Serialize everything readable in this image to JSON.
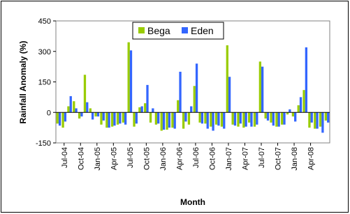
{
  "chart_data": {
    "type": "bar",
    "x_label": "Month",
    "y_label": "Rainfall Anomaly (%)",
    "categories": [
      null,
      "Jul-04",
      null,
      null,
      "Oct-04",
      null,
      null,
      "Jan-05",
      null,
      null,
      "Apr-05",
      null,
      null,
      "Jul-05",
      null,
      null,
      "Oct-05",
      null,
      null,
      "Jan-06",
      null,
      null,
      "Apr-06",
      null,
      null,
      "Jul-06",
      null,
      null,
      "Oct-06",
      null,
      null,
      "Jan-07",
      null,
      null,
      "Apr-07",
      null,
      null,
      "Jul-07",
      null,
      null,
      "Oct-07",
      null,
      null,
      "Jan-08",
      null,
      null,
      "Apr-08",
      null,
      null,
      null
    ],
    "series": [
      {
        "name": "Bega",
        "color": "#99cc00",
        "values": [
          -55,
          -75,
          30,
          55,
          -30,
          185,
          20,
          -20,
          -60,
          -75,
          -70,
          -60,
          -50,
          345,
          -70,
          25,
          45,
          -50,
          -60,
          -90,
          -85,
          -75,
          60,
          -80,
          -60,
          130,
          -50,
          -55,
          -70,
          -60,
          -70,
          330,
          -60,
          -70,
          -75,
          -50,
          -70,
          250,
          -30,
          -50,
          -70,
          -60,
          -10,
          -20,
          35,
          110,
          -75,
          -80,
          -70,
          -40
        ]
      },
      {
        "name": "Eden",
        "color": "#3366ff",
        "values": [
          -65,
          -45,
          80,
          20,
          -20,
          50,
          -35,
          -20,
          -40,
          -75,
          -65,
          -55,
          -60,
          305,
          -55,
          30,
          135,
          20,
          -55,
          -85,
          -75,
          -80,
          200,
          -45,
          30,
          240,
          -55,
          -80,
          -90,
          -65,
          -80,
          175,
          -65,
          -55,
          -70,
          -70,
          -60,
          225,
          -40,
          -65,
          -70,
          -60,
          15,
          -45,
          75,
          320,
          -50,
          -80,
          -100,
          -50
        ]
      }
    ],
    "ylim": [
      -150,
      450
    ],
    "yticks": [
      -150,
      0,
      150,
      300,
      450
    ],
    "legend": "top"
  }
}
